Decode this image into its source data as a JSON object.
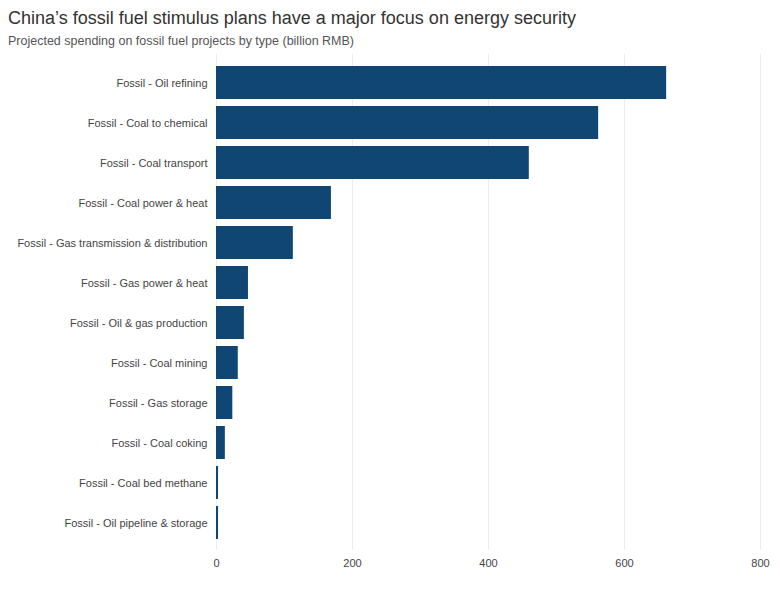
{
  "chart_data": {
    "type": "bar",
    "orientation": "horizontal",
    "title": "China’s fossil fuel stimulus plans have a major focus on energy security",
    "subtitle": "Projected spending on fossil fuel projects by type (billion RMB)",
    "categories": [
      "Fossil - Oil refining",
      "Fossil - Coal to chemical",
      "Fossil - Coal transport",
      "Fossil - Coal power & heat",
      "Fossil - Gas transmission & distribution",
      "Fossil - Gas power & heat",
      "Fossil - Oil & gas production",
      "Fossil - Coal mining",
      "Fossil - Gas storage",
      "Fossil - Coal coking",
      "Fossil - Coal bed methane",
      "Fossil - Oil pipeline & storage"
    ],
    "values": [
      662,
      562,
      460,
      169,
      113,
      47,
      41,
      32,
      24,
      13,
      3,
      3
    ],
    "color": "#0f4673",
    "xlim": [
      0,
      800
    ],
    "xticks": [
      0,
      200,
      400,
      600,
      800
    ],
    "grid": true
  }
}
